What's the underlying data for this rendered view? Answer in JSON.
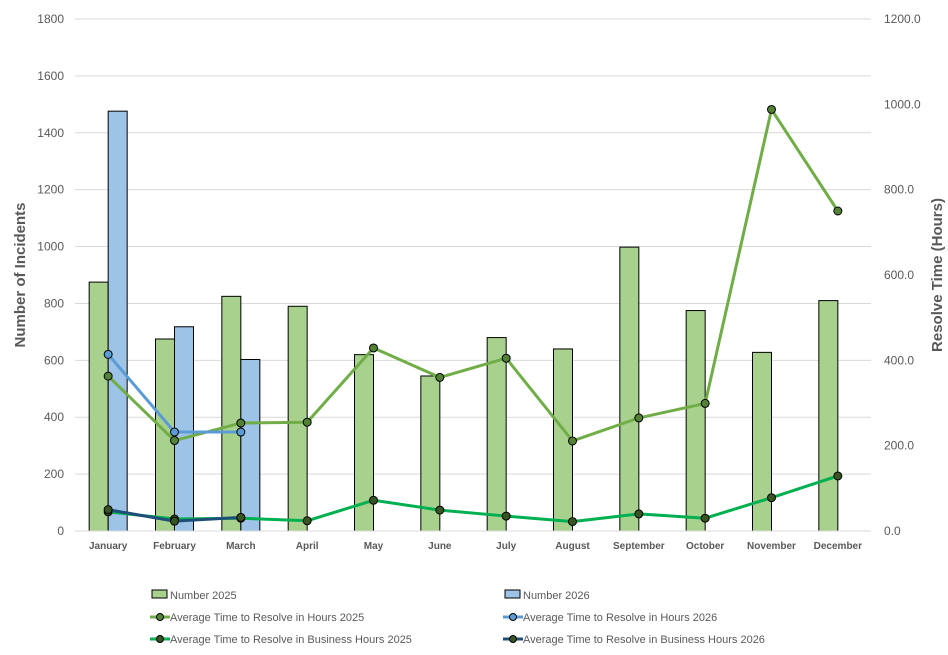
{
  "chart_data": {
    "type": "bar+line",
    "title": "",
    "categories": [
      "January",
      "February",
      "March",
      "April",
      "May",
      "June",
      "July",
      "August",
      "September",
      "October",
      "November",
      "December"
    ],
    "ylabel": "Number of Incidents",
    "y2label": "Resolve Time (Hours)",
    "ylim": [
      0,
      1800
    ],
    "y2lim": [
      0,
      1200
    ],
    "yticks": [
      "0",
      "200",
      "400",
      "600",
      "800",
      "1000",
      "1200",
      "1400",
      "1600",
      "1800"
    ],
    "y2ticks": [
      "0.0",
      "200.0",
      "400.0",
      "600.0",
      "800.0",
      "1000.0",
      "1200.0"
    ],
    "grid": true,
    "legend_position": "bottom",
    "series": [
      {
        "name": "Number 2025",
        "type": "bar",
        "axis": "left",
        "color": "#A9D18E",
        "values": [
          875,
          675,
          825,
          790,
          620,
          545,
          680,
          640,
          998,
          775,
          628,
          810
        ]
      },
      {
        "name": "Number 2026",
        "type": "bar",
        "axis": "left",
        "color": "#9DC3E6",
        "values": [
          1476,
          718,
          603,
          null,
          null,
          null,
          null,
          null,
          null,
          null,
          null,
          null
        ]
      },
      {
        "name": "Average Time to Resolve in Hours 2025",
        "type": "line",
        "axis": "right",
        "color": "#70AD47",
        "marker": "#548235",
        "values": [
          363,
          212,
          253,
          255,
          429,
          360,
          405,
          211,
          265,
          299,
          988,
          750
        ]
      },
      {
        "name": "Average Time to Resolve in Hours 2026",
        "type": "line",
        "axis": "right",
        "color": "#5B9BD5",
        "marker": "#5B9BD5",
        "values": [
          414,
          232,
          232,
          null,
          null,
          null,
          null,
          null,
          null,
          null,
          null,
          null
        ]
      },
      {
        "name": "Average Time to Resolve in Business Hours 2025",
        "type": "line",
        "axis": "right",
        "color": "#00B050",
        "marker": "#375623",
        "values": [
          45,
          28,
          30,
          24,
          72,
          49,
          35,
          22,
          40,
          30,
          78,
          129
        ]
      },
      {
        "name": "Average Time to Resolve in Business Hours 2026",
        "type": "line",
        "axis": "right",
        "color": "#1F4E79",
        "marker": "#375623",
        "values": [
          50,
          23,
          32,
          null,
          null,
          null,
          null,
          null,
          null,
          null,
          null,
          null
        ]
      }
    ]
  }
}
